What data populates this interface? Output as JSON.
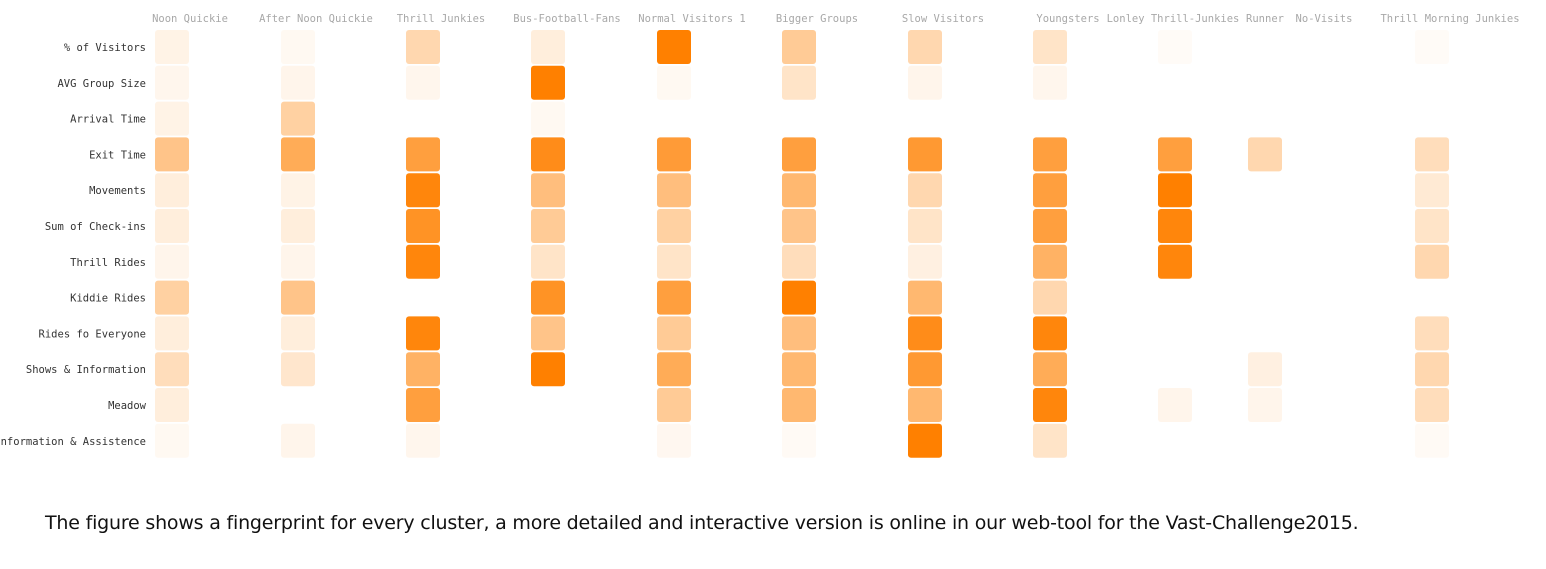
{
  "caption": "The figure shows a fingerprint for every cluster, a more detailed and interactive version is online in our web-tool for the Vast-Challenge2015.",
  "colors": {
    "cell_max": "#ff8000",
    "cell_min": "#ffffff"
  },
  "chart_data": {
    "type": "heatmap",
    "columns": [
      "Noon Quickie",
      "After Noon Quickie",
      "Thrill Junkies",
      "Bus-Football-Fans",
      "Normal Visitors 1",
      "Bigger Groups",
      "Slow Visitors",
      "Youngsters",
      "Lonley Thrill-Junkies",
      "Runner",
      "No-Visits",
      "Thrill Morning Junkies"
    ],
    "rows": [
      "% of Visitors",
      "AVG Group Size",
      "Arrival Time",
      "Exit Time",
      "Movements",
      "Sum of Check-ins",
      "Thrill Rides",
      "Kiddie Rides",
      "Rides fo Everyone",
      "Shows & Information",
      "Meadow",
      "Information & Assistence"
    ],
    "values": [
      [
        0.08,
        0.03,
        0.3,
        0.12,
        1.0,
        0.4,
        0.3,
        0.2,
        0.01,
        null,
        null,
        0.01
      ],
      [
        0.05,
        0.06,
        0.05,
        1.0,
        0.03,
        0.2,
        0.06,
        0.05,
        null,
        null,
        null,
        null
      ],
      [
        0.08,
        0.35,
        null,
        0.03,
        null,
        null,
        null,
        null,
        null,
        null,
        null,
        null
      ],
      [
        0.45,
        0.65,
        0.75,
        0.9,
        0.78,
        0.75,
        0.8,
        0.75,
        0.75,
        0.3,
        null,
        0.25
      ],
      [
        0.12,
        0.08,
        0.95,
        0.5,
        0.5,
        0.55,
        0.3,
        0.75,
        1.0,
        null,
        null,
        0.15
      ],
      [
        0.12,
        0.12,
        0.85,
        0.4,
        0.35,
        0.45,
        0.2,
        0.75,
        0.95,
        null,
        null,
        0.2
      ],
      [
        0.06,
        0.06,
        0.95,
        0.2,
        0.2,
        0.25,
        0.1,
        0.6,
        0.95,
        null,
        null,
        0.3
      ],
      [
        0.35,
        0.45,
        null,
        0.85,
        0.75,
        1.0,
        0.55,
        0.3,
        null,
        null,
        null,
        null
      ],
      [
        0.12,
        0.12,
        0.95,
        0.45,
        0.4,
        0.5,
        0.9,
        0.95,
        null,
        null,
        null,
        0.25
      ],
      [
        0.25,
        0.18,
        0.6,
        1.0,
        0.65,
        0.55,
        0.8,
        0.65,
        null,
        0.1,
        null,
        0.3
      ],
      [
        0.12,
        null,
        0.75,
        null,
        0.4,
        0.55,
        0.55,
        0.95,
        0.06,
        0.06,
        null,
        0.25
      ],
      [
        0.03,
        0.06,
        0.05,
        null,
        0.04,
        0.02,
        1.0,
        0.2,
        null,
        null,
        null,
        0.02
      ]
    ]
  }
}
